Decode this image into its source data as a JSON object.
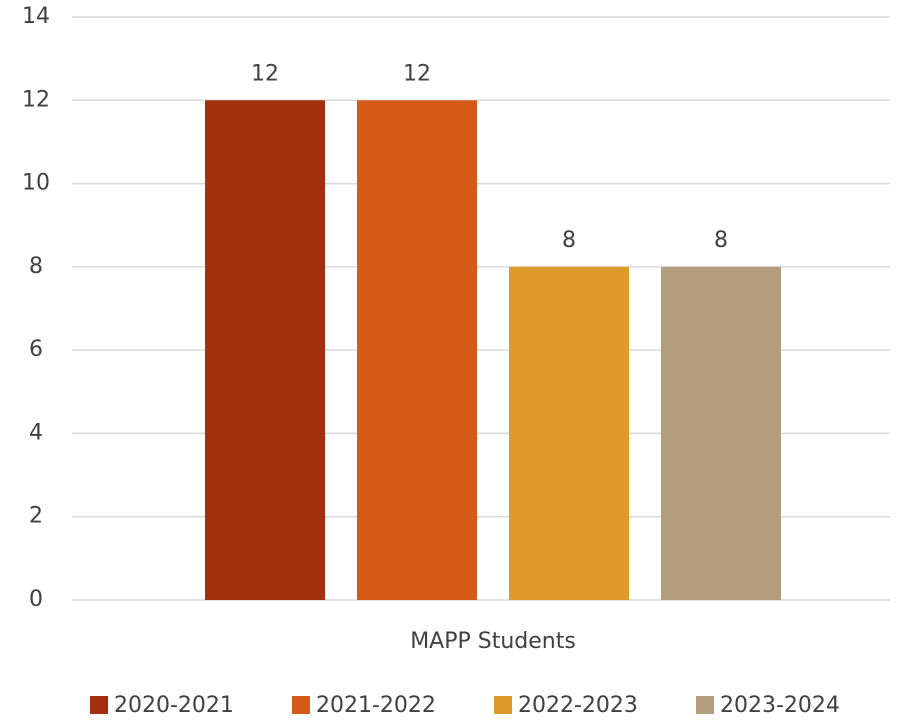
{
  "chart_data": {
    "type": "bar",
    "categories": [
      "MAPP Students"
    ],
    "series": [
      {
        "name": "2020-2021",
        "color": "#a5300f",
        "values": [
          12
        ]
      },
      {
        "name": "2021-2022",
        "color": "#d55a18",
        "values": [
          12
        ]
      },
      {
        "name": "2022-2023",
        "color": "#e09a29",
        "values": [
          8
        ]
      },
      {
        "name": "2023-2024",
        "color": "#b39d7e",
        "values": [
          8
        ]
      }
    ],
    "ylim": [
      0,
      14
    ],
    "yticks": [
      0,
      2,
      4,
      6,
      8,
      10,
      12,
      14
    ],
    "grid": true,
    "legend": "bottom",
    "data_labels": true
  }
}
